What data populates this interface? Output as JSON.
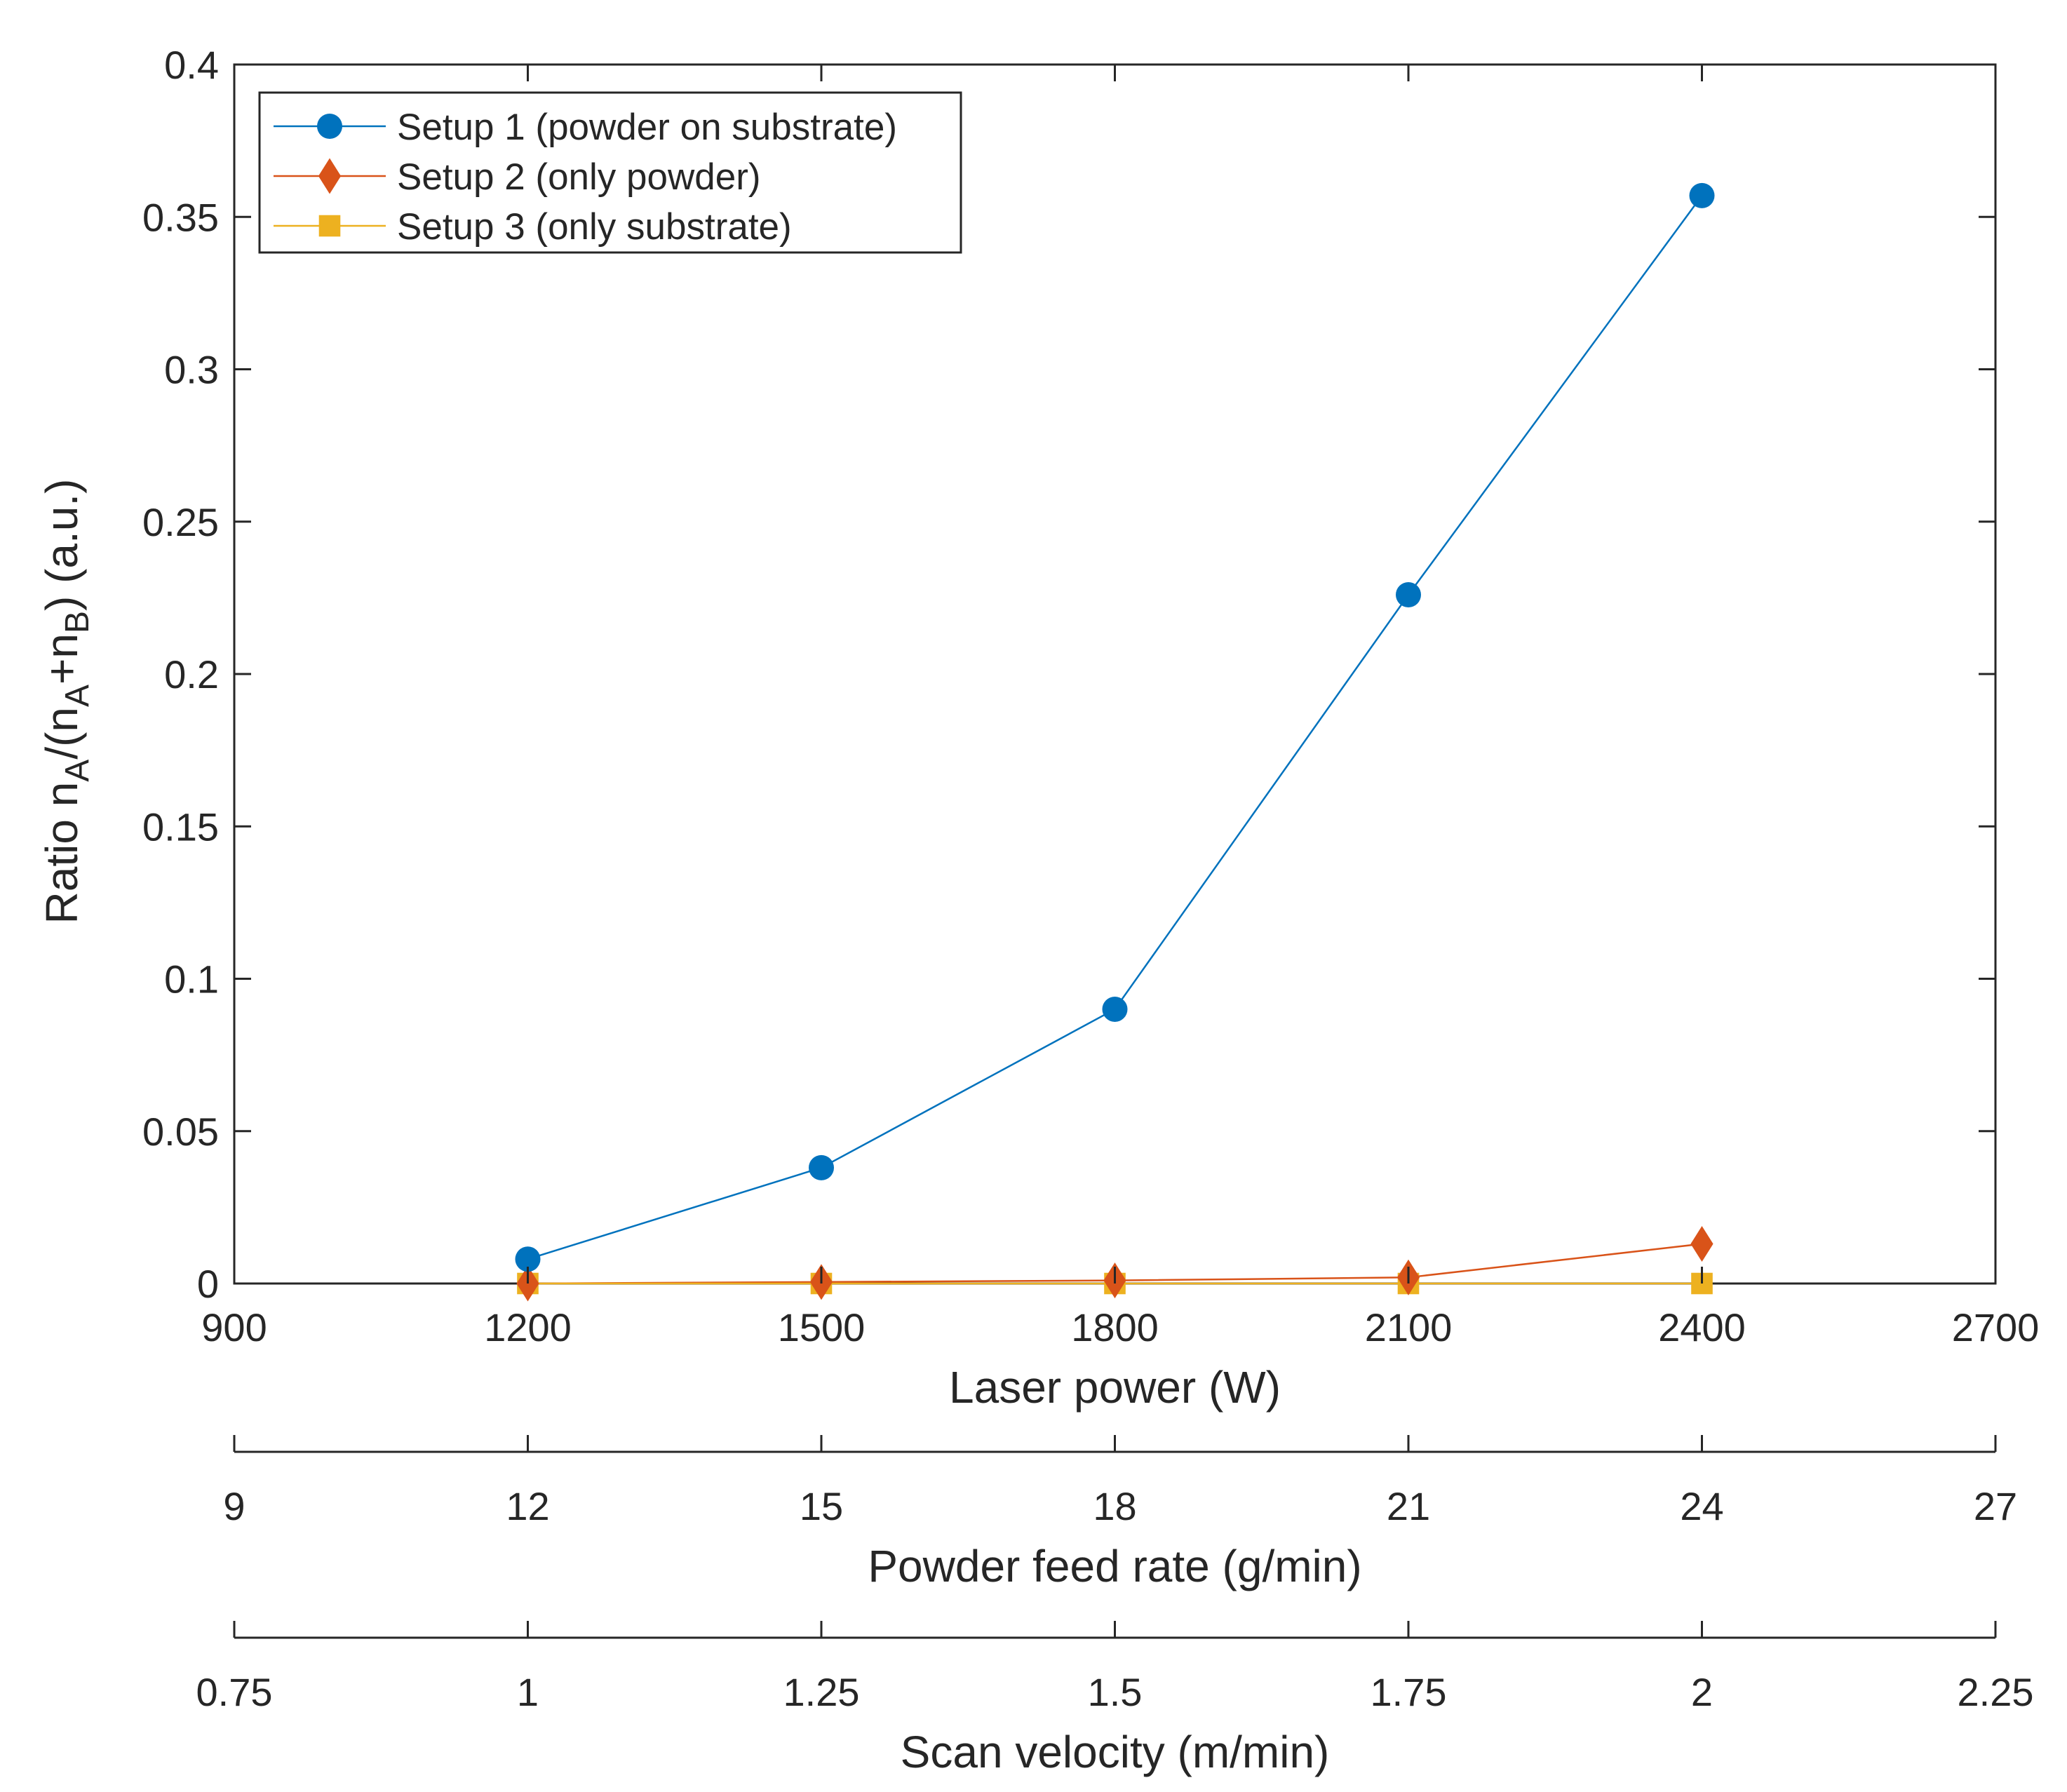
{
  "chart_data": {
    "type": "line",
    "title": "",
    "ylabel": {
      "prefix": "Ratio n",
      "sub1": "A",
      "mid": "/(n",
      "sub2": "A",
      "plus": "+n",
      "sub3": "B",
      "suffix": ") (a.u.)"
    },
    "ylim": [
      0,
      0.4
    ],
    "yticks": [
      0,
      0.05,
      0.1,
      0.15,
      0.2,
      0.25,
      0.3,
      0.35,
      0.4
    ],
    "ytick_labels": [
      "0",
      "0.05",
      "0.1",
      "0.15",
      "0.2",
      "0.25",
      "0.3",
      "0.35",
      "0.4"
    ],
    "xlim": [
      900,
      2700
    ],
    "xaxes": [
      {
        "label": "Laser power (W)",
        "ticks": [
          900,
          1200,
          1500,
          1800,
          2100,
          2400,
          2700
        ],
        "tick_labels": [
          "900",
          "1200",
          "1500",
          "1800",
          "2100",
          "2400",
          "2700"
        ]
      },
      {
        "label": "Powder feed rate (g/min)",
        "ticks": [
          900,
          1200,
          1500,
          1800,
          2100,
          2400,
          2700
        ],
        "tick_labels": [
          "9",
          "12",
          "15",
          "18",
          "21",
          "24",
          "27"
        ]
      },
      {
        "label": "Scan velocity (m/min)",
        "ticks": [
          900,
          1200,
          1500,
          1800,
          2100,
          2400,
          2700
        ],
        "tick_labels": [
          "0.75",
          "1",
          "1.25",
          "1.5",
          "1.75",
          "2",
          "2.25"
        ]
      }
    ],
    "x": [
      1200,
      1500,
      1800,
      2100,
      2400
    ],
    "series": [
      {
        "name": "Setup 1 (powder on substrate)",
        "color": "#0072BD",
        "marker": "circle",
        "values": [
          0.008,
          0.038,
          0.09,
          0.226,
          0.357
        ]
      },
      {
        "name": "Setup 2 (only powder)",
        "color": "#D95319",
        "marker": "diamond",
        "values": [
          0.0,
          0.0005,
          0.001,
          0.002,
          0.013
        ]
      },
      {
        "name": "Setup 3 (only substrate)",
        "color": "#EDB120",
        "marker": "square",
        "values": [
          0.0,
          0.0,
          0.0,
          0.0,
          0.0
        ]
      }
    ],
    "legend": "top-left",
    "grid": false
  }
}
